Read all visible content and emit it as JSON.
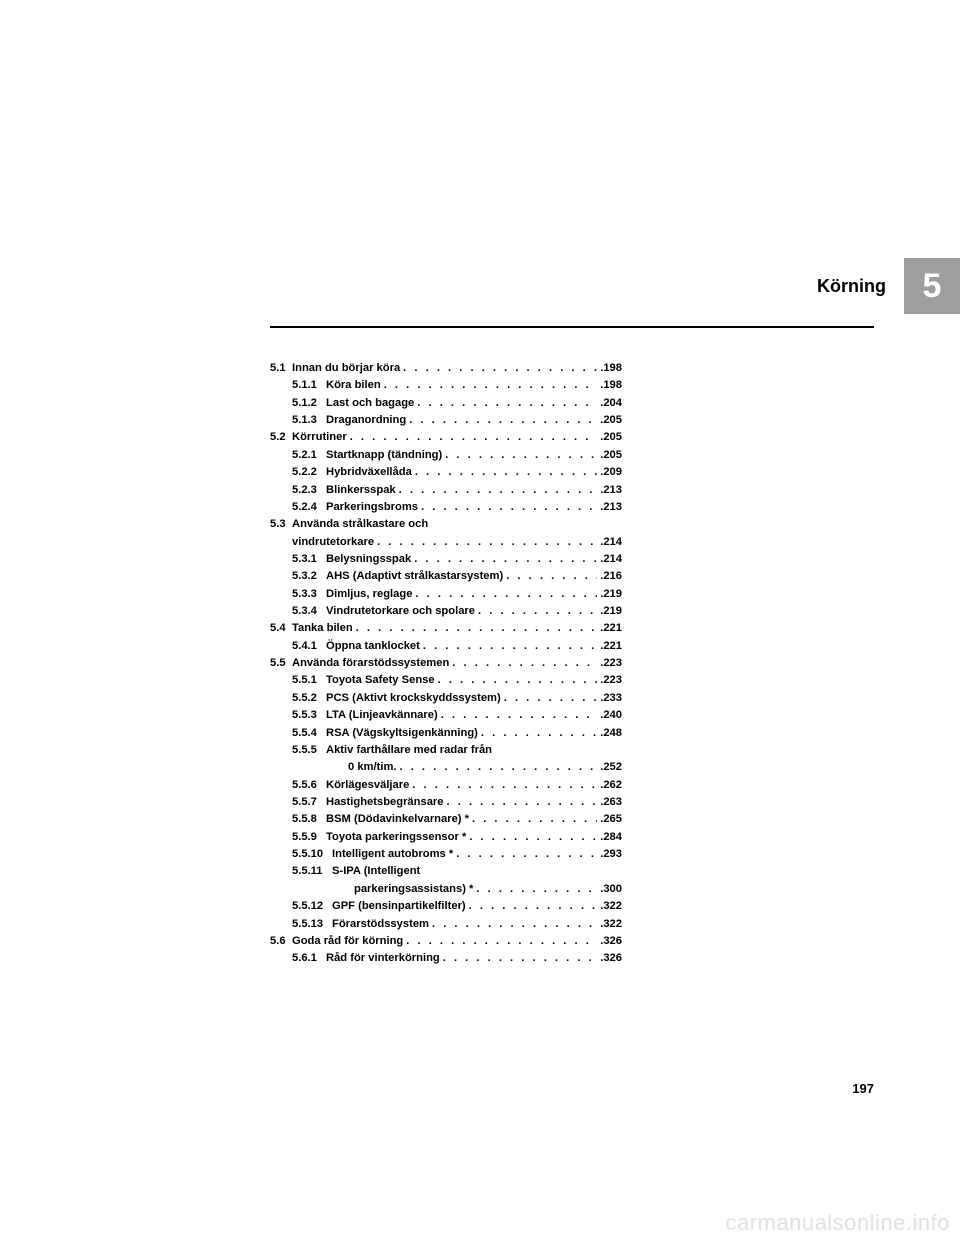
{
  "chapter": {
    "title": "Körning",
    "number": "5"
  },
  "toc": {
    "sections": [
      {
        "num": "5.1",
        "label": "Innan du börjar köra",
        "page": "198",
        "items": [
          {
            "num": "5.1.1",
            "label": "Köra bilen",
            "page": "198"
          },
          {
            "num": "5.1.2",
            "label": "Last och bagage",
            "page": "204"
          },
          {
            "num": "5.1.3",
            "label": "Draganordning",
            "page": "205"
          }
        ]
      },
      {
        "num": "5.2",
        "label": "Körrutiner",
        "page": "205",
        "items": [
          {
            "num": "5.2.1",
            "label": "Startknapp (tändning)",
            "page": "205"
          },
          {
            "num": "5.2.2",
            "label": "Hybridväxellåda",
            "page": "209"
          },
          {
            "num": "5.2.3",
            "label": "Blinkersspak",
            "page": "213"
          },
          {
            "num": "5.2.4",
            "label": "Parkeringsbroms",
            "page": "213"
          }
        ]
      },
      {
        "num": "5.3",
        "label": "Använda strålkastare och vindrutetorkare",
        "page": "214",
        "wrap": true,
        "items": [
          {
            "num": "5.3.1",
            "label": "Belysningsspak",
            "page": "214"
          },
          {
            "num": "5.3.2",
            "label": "AHS (Adaptivt strålkastarsystem)",
            "page": "216"
          },
          {
            "num": "5.3.3",
            "label": "Dimljus, reglage",
            "page": "219"
          },
          {
            "num": "5.3.4",
            "label": "Vindrutetorkare och spolare",
            "page": "219"
          }
        ]
      },
      {
        "num": "5.4",
        "label": "Tanka bilen",
        "page": "221",
        "items": [
          {
            "num": "5.4.1",
            "label": "Öppna tanklocket",
            "page": "221"
          }
        ]
      },
      {
        "num": "5.5",
        "label": "Använda förarstödssystemen",
        "page": "223",
        "items": [
          {
            "num": "5.5.1",
            "label": "Toyota Safety Sense",
            "page": "223"
          },
          {
            "num": "5.5.2",
            "label": "PCS (Aktivt krockskyddssystem)",
            "page": "233"
          },
          {
            "num": "5.5.3",
            "label": "LTA (Linjeavkännare)",
            "page": "240"
          },
          {
            "num": "5.5.4",
            "label": "RSA (Vägskyltsigenkänning)",
            "page": "248"
          },
          {
            "num": "5.5.5",
            "label": "Aktiv farthållare med radar från 0 km/tim.",
            "page": "252",
            "wrap": true
          },
          {
            "num": "5.5.6",
            "label": "Körlägesväljare",
            "page": "262"
          },
          {
            "num": "5.5.7",
            "label": "Hastighetsbegränsare",
            "page": "263"
          },
          {
            "num": "5.5.8",
            "label": "BSM (Dödavinkelvarnare) *",
            "page": "265"
          },
          {
            "num": "5.5.9",
            "label": "Toyota parkeringssensor *",
            "page": "284"
          },
          {
            "num": "5.5.10",
            "label": "Intelligent autobroms *",
            "page": "293",
            "wide": true
          },
          {
            "num": "5.5.11",
            "label": "S-IPA (Intelligent parkeringsassistans) *",
            "page": "300",
            "wide": true,
            "wrap": true
          },
          {
            "num": "5.5.12",
            "label": "GPF (bensinpartikelfilter)",
            "page": "322",
            "wide": true
          },
          {
            "num": "5.5.13",
            "label": "Förarstödssystem",
            "page": "322",
            "wide": true
          }
        ]
      },
      {
        "num": "5.6",
        "label": "Goda råd för körning",
        "page": "326",
        "items": [
          {
            "num": "5.6.1",
            "label": "Råd för vinterkörning",
            "page": "326"
          }
        ]
      }
    ]
  },
  "pageNumber": "197",
  "watermark": "carmanualsonline.info"
}
